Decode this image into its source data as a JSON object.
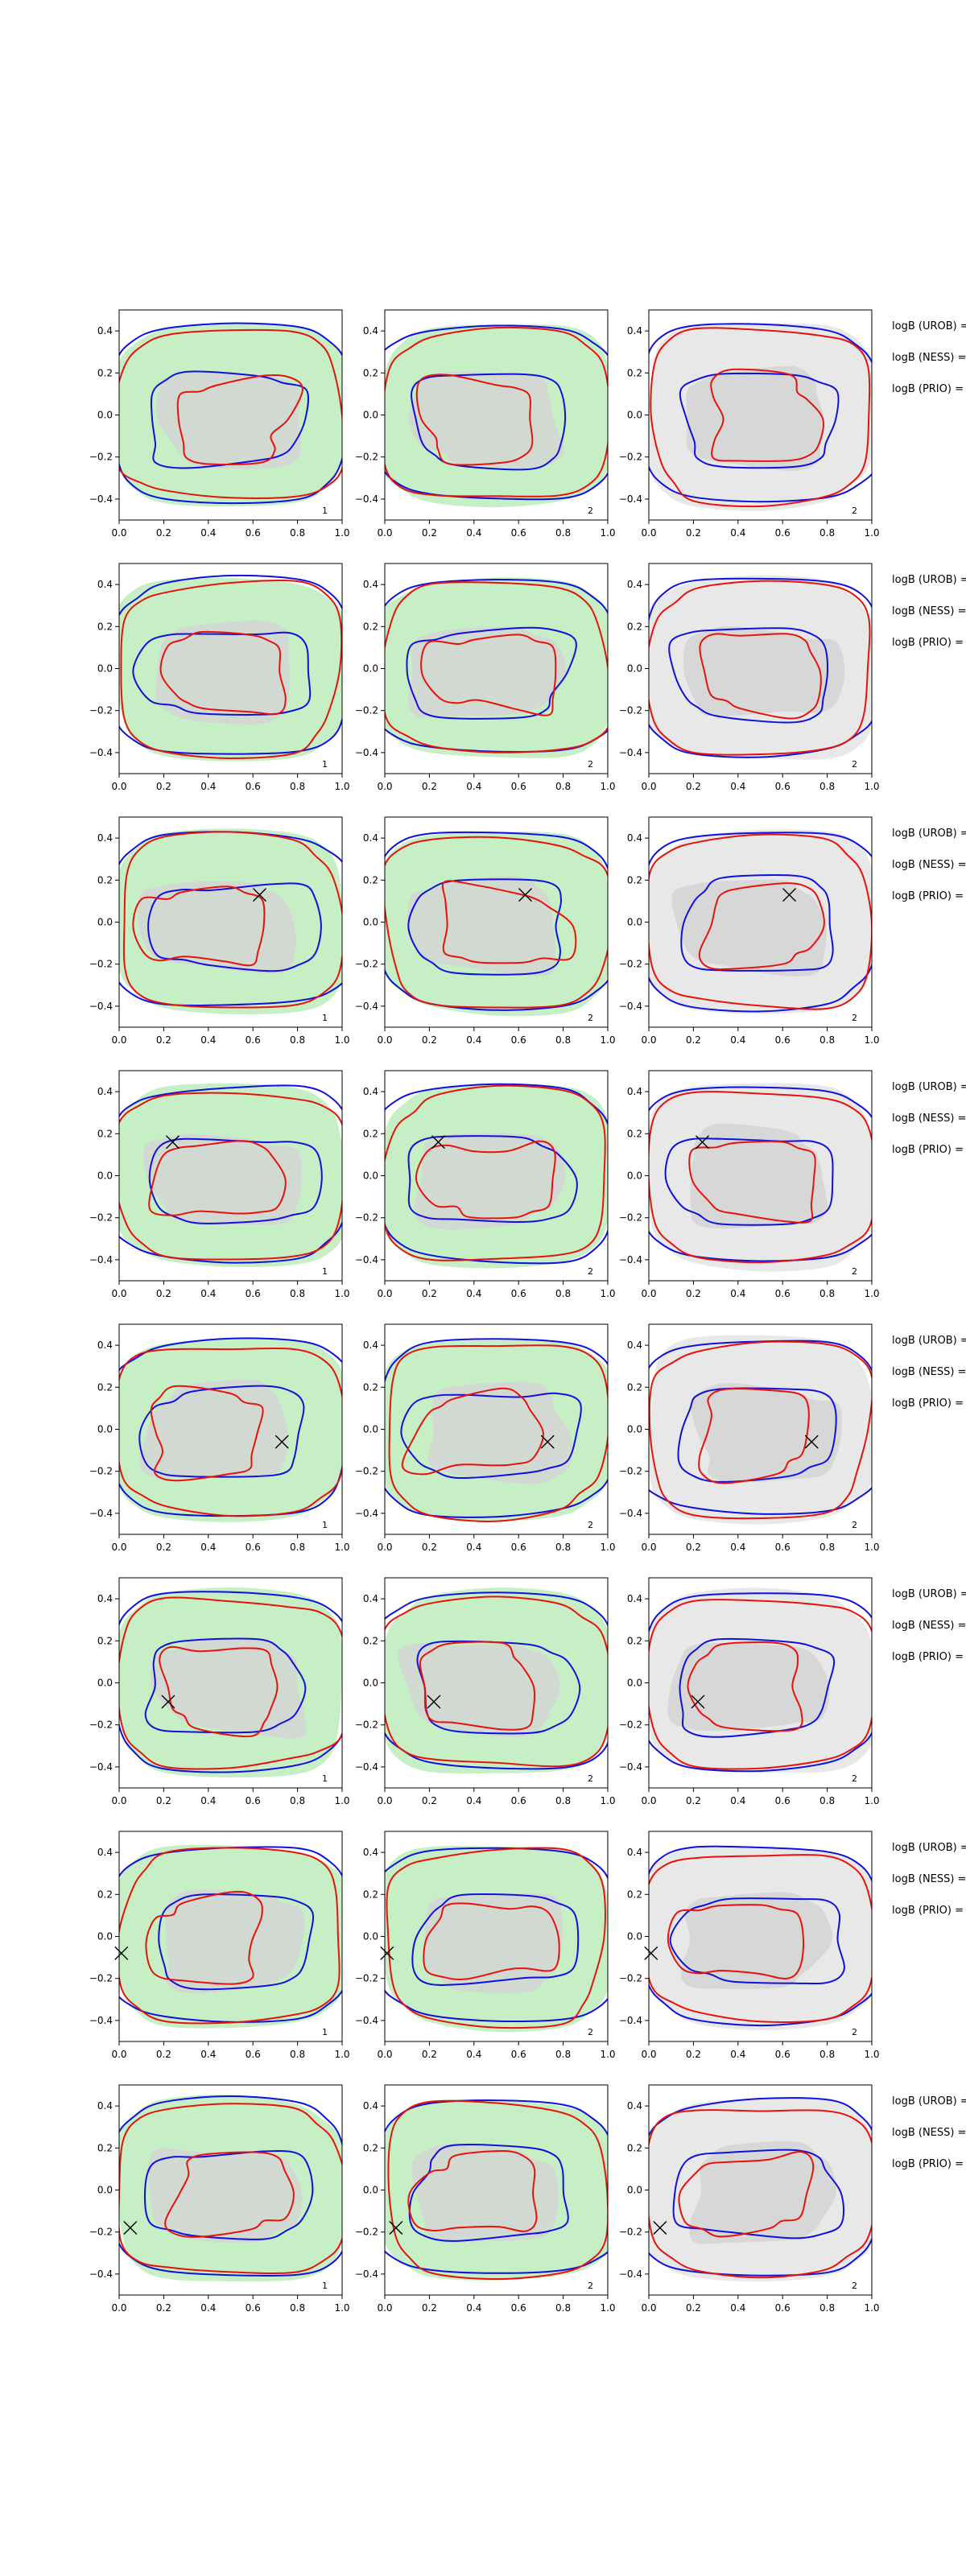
{
  "chart_data": {
    "type": "contour-grid",
    "rows": 8,
    "columns": 3,
    "xlim": [
      0.0,
      1.0
    ],
    "ylim": [
      -0.5,
      0.5
    ],
    "x_ticks": [
      "0.0",
      "0.2",
      "0.4",
      "0.6",
      "0.8",
      "1.0"
    ],
    "y_ticks": [
      "0.4",
      "0.2",
      "0.0",
      "−0.2",
      "−0.4"
    ],
    "panel_numbers": [
      "1",
      "2",
      "2"
    ],
    "row_labels": [
      "logB (UROB) =",
      "logB (NESS) =",
      "logB (PRIO) ="
    ],
    "markers": [
      null,
      null,
      {
        "x": 0.63,
        "y": 0.13
      },
      {
        "x": 0.24,
        "y": 0.16
      },
      {
        "x": 0.73,
        "y": -0.06
      },
      {
        "x": 0.22,
        "y": -0.09
      },
      {
        "x": 0.01,
        "y": -0.08
      },
      {
        "x": 0.05,
        "y": -0.18
      }
    ],
    "colors": {
      "green_fill": "#c6efc6",
      "grey_fill": "#d3d3d3",
      "light_grey_fill": "#e8e8e8",
      "red_line": "#e8120c",
      "blue_line": "#1010dd"
    }
  }
}
